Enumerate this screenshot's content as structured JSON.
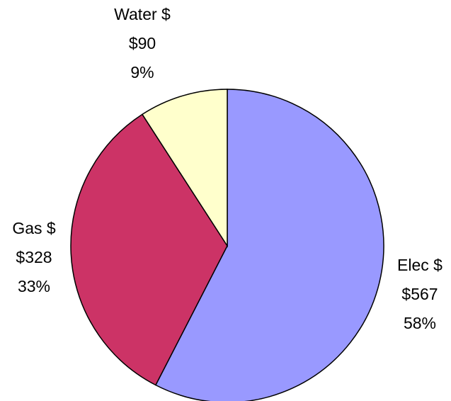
{
  "chart_data": {
    "type": "pie",
    "start_angle_deg": 0,
    "direction": "clockwise",
    "legend": "none",
    "slices": [
      {
        "label": "Elec $",
        "value": 567,
        "value_label": "$567",
        "percent_label": "58%",
        "color": "#9999ff"
      },
      {
        "label": "Gas $",
        "value": 328,
        "value_label": "$328",
        "percent_label": "33%",
        "color": "#cc3366"
      },
      {
        "label": "Water $",
        "value": 90,
        "value_label": "$90",
        "percent_label": "9%",
        "color": "#ffffcc"
      }
    ]
  }
}
